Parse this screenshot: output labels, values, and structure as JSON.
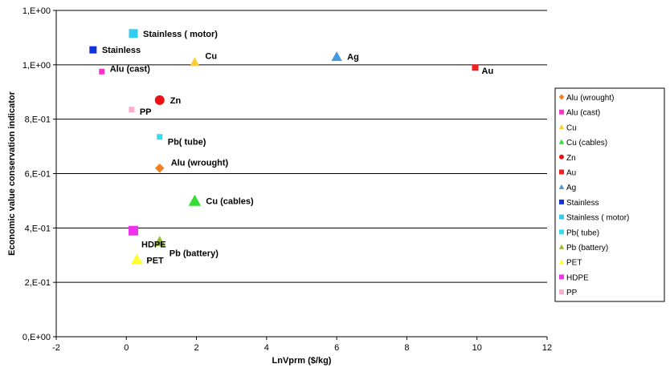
{
  "chart_data": {
    "type": "scatter",
    "title": "",
    "xlabel": "LnVprm ($/kg)",
    "ylabel": "Economic value conservation indicator",
    "xlim": [
      -2,
      12
    ],
    "ylim": [
      0,
      1.2
    ],
    "x_ticks": [
      -2,
      0,
      2,
      4,
      6,
      8,
      10,
      12
    ],
    "x_tick_labels": [
      "-2",
      "0",
      "2",
      "4",
      "6",
      "8",
      "10",
      "12"
    ],
    "y_ticks": [
      0,
      0.2,
      0.4,
      0.6,
      0.8,
      1.0,
      1.2
    ],
    "y_tick_labels": [
      "0,E+00",
      "2,E-01",
      "4,E-01",
      "6,E-01",
      "8,E-01",
      "1,E+00",
      "1,E+00"
    ],
    "grid": "horizontal",
    "legend_position": "right",
    "series": [
      {
        "name": "Alu (wrought)",
        "marker": "diamond",
        "color": "#f08020",
        "label": "Alu (wrought)",
        "x": 0.95,
        "y": 0.62
      },
      {
        "name": "Alu (cast)",
        "marker": "square",
        "color": "#ff33cc",
        "label": "Alu (cast)",
        "x": -0.7,
        "y": 0.975
      },
      {
        "name": "Cu",
        "marker": "triangle",
        "color": "#ffcc33",
        "label": "Cu",
        "x": 1.95,
        "y": 1.01
      },
      {
        "name": "Cu (cables)",
        "marker": "triangle",
        "color": "#33dd33",
        "label": "Cu (cables)",
        "x": 1.95,
        "y": 0.5
      },
      {
        "name": "Zn",
        "marker": "circle",
        "color": "#ee1111",
        "label": "Zn",
        "x": 0.95,
        "y": 0.87
      },
      {
        "name": "Au",
        "marker": "square",
        "color": "#ee2222",
        "label": "Au",
        "x": 9.95,
        "y": 0.99
      },
      {
        "name": "Ag",
        "marker": "triangle",
        "color": "#4499dd",
        "label": "Ag",
        "x": 6.0,
        "y": 1.03
      },
      {
        "name": "Stainless",
        "marker": "square",
        "color": "#1133dd",
        "label": "Stainless",
        "x": -0.95,
        "y": 1.055
      },
      {
        "name": "Stainless ( motor)",
        "marker": "square",
        "color": "#33ccee",
        "label": "Stainless ( motor)",
        "x": 0.2,
        "y": 1.115
      },
      {
        "name": "Pb( tube)",
        "marker": "square",
        "color": "#33ddee",
        "label": "Pb( tube)",
        "x": 0.95,
        "y": 0.735
      },
      {
        "name": "Pb (battery)",
        "marker": "triangle",
        "color": "#99bb33",
        "label": "Pb (battery)",
        "x": 0.95,
        "y": 0.35
      },
      {
        "name": "PET",
        "marker": "triangle",
        "color": "#ffff33",
        "label": "PET",
        "x": 0.3,
        "y": 0.285
      },
      {
        "name": "HDPE",
        "marker": "square",
        "color": "#ee33ee",
        "label": "HDPE",
        "x": 0.2,
        "y": 0.39
      },
      {
        "name": "PP",
        "marker": "square",
        "color": "#ffaacc",
        "label": "PP",
        "x": 0.15,
        "y": 0.835
      }
    ]
  }
}
